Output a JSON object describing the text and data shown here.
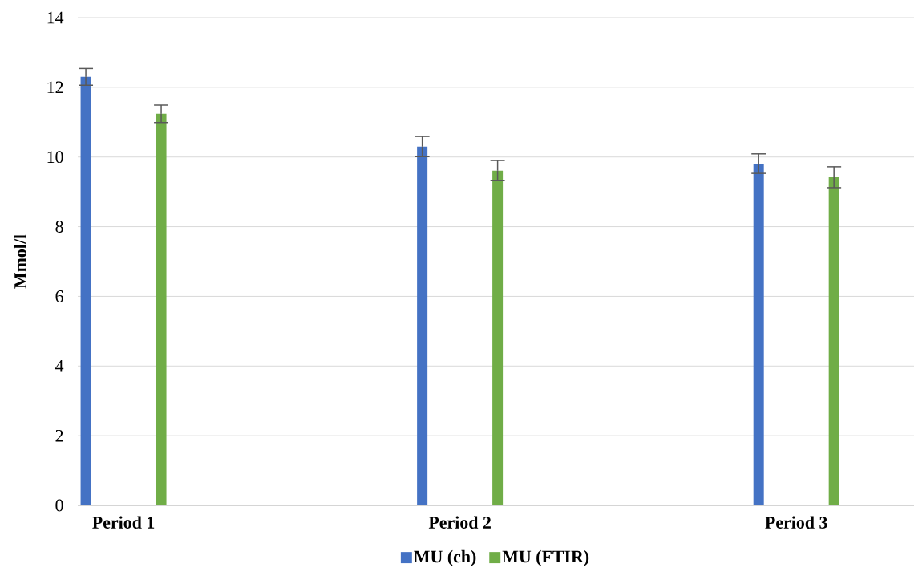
{
  "chart_data": {
    "type": "bar",
    "ylabel": "Mmol/l",
    "categories": [
      "Period 1",
      "Period 2",
      "Period 3"
    ],
    "series": [
      {
        "name": "MU (ch)",
        "color": "#4472c4",
        "values": [
          12.3,
          10.3,
          9.81
        ],
        "errors": [
          0.24,
          0.29,
          0.28
        ]
      },
      {
        "name": "MU (FTIR)",
        "color": "#70ad47",
        "values": [
          11.24,
          9.61,
          9.42
        ],
        "errors": [
          0.25,
          0.29,
          0.3
        ]
      }
    ],
    "ylim": [
      0,
      14
    ],
    "yticks": [
      0,
      2,
      4,
      6,
      8,
      10,
      12,
      14
    ],
    "grid": "y",
    "legend": "bottom"
  }
}
